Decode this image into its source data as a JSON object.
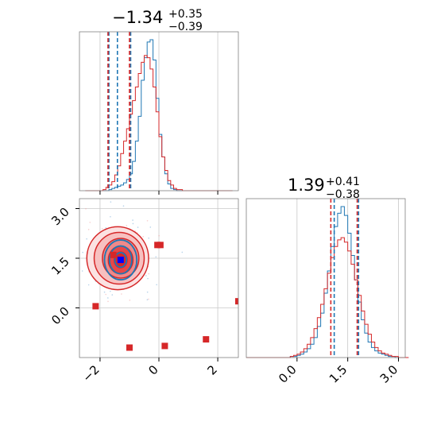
{
  "chart_data": [
    {
      "type": "histogram",
      "panel": "top-left",
      "title_value": "−1.34",
      "title_plus": "+0.35",
      "title_minus": "−0.39",
      "xlim": [
        -2.7,
        2.7
      ],
      "x_ticks": [
        -2,
        0,
        2
      ],
      "series": [
        {
          "color": "#1f77b4",
          "bin_start": -2.5,
          "bin_width": 0.1,
          "counts": [
            0,
            0,
            0,
            0,
            0,
            0,
            0,
            0,
            1,
            2,
            3,
            4,
            5,
            7,
            10,
            15,
            26,
            44,
            66,
            98,
            118,
            132,
            134,
            116,
            82,
            50,
            30,
            15,
            6,
            2,
            1,
            0,
            0,
            0,
            0,
            0,
            0,
            0,
            0,
            0,
            0,
            0,
            0,
            0,
            0,
            0,
            0,
            0,
            0,
            0
          ],
          "quantile_lines": [
            -1.7,
            -1.41,
            -0.96
          ]
        },
        {
          "color": "#d62728",
          "bin_start": -2.5,
          "bin_width": 0.1,
          "counts": [
            0,
            0,
            0,
            0,
            0,
            0,
            1,
            3,
            5,
            8,
            14,
            22,
            33,
            44,
            55,
            68,
            80,
            92,
            104,
            114,
            120,
            118,
            108,
            92,
            70,
            48,
            30,
            18,
            9,
            5,
            2,
            1,
            1,
            0,
            0,
            0,
            0,
            0,
            0,
            0,
            0,
            0,
            0,
            0,
            0,
            0,
            0,
            0,
            0,
            0
          ],
          "quantile_lines": [
            -1.73,
            -1.0
          ]
        }
      ]
    },
    {
      "type": "contour-scatter",
      "panel": "bottom-left",
      "xlim": [
        -2.7,
        2.7
      ],
      "ylim": [
        -1.5,
        3.3
      ],
      "x_ticks": [
        -2,
        0,
        2
      ],
      "y_ticks": [
        0.0,
        1.5,
        3.0
      ],
      "y_tick_labels": [
        "0.0",
        "1.5",
        "3.0"
      ],
      "red_contours": [
        {
          "cx": -1.4,
          "cy": 1.5,
          "rx": 1.05,
          "ry": 0.95,
          "fill": "#fbe2e2"
        },
        {
          "cx": -1.35,
          "cy": 1.5,
          "rx": 0.85,
          "ry": 0.78,
          "fill": "#f7c0c0"
        },
        {
          "cx": -1.3,
          "cy": 1.5,
          "rx": 0.62,
          "ry": 0.6,
          "fill": "#ef8a8a"
        },
        {
          "cx": -1.3,
          "cy": 1.45,
          "rx": 0.42,
          "ry": 0.42,
          "fill": "#e54848"
        },
        {
          "cx": -1.3,
          "cy": 1.45,
          "rx": 0.22,
          "ry": 0.24,
          "fill": "#d62728"
        }
      ],
      "blue_contours": [
        {
          "cx": -1.3,
          "cy": 1.45,
          "rx": 0.55,
          "ry": 0.6
        },
        {
          "cx": -1.3,
          "cy": 1.45,
          "rx": 0.38,
          "ry": 0.42
        },
        {
          "cx": -1.3,
          "cy": 1.45,
          "rx": 0.2,
          "ry": 0.22
        }
      ],
      "red_points": [
        [
          -1.55,
          1.6
        ],
        [
          -0.05,
          1.9
        ],
        [
          0.05,
          1.9
        ],
        [
          -2.15,
          0.05
        ],
        [
          -1.0,
          -1.2
        ],
        [
          0.2,
          -1.15
        ],
        [
          1.6,
          -0.95
        ],
        [
          2.7,
          0.2
        ]
      ],
      "blue_point": [
        -1.3,
        1.45
      ],
      "colors": {
        "red": "#d62728",
        "blue": "#1f77b4",
        "blue_marker": "#0000ff"
      }
    },
    {
      "type": "histogram",
      "panel": "bottom-right",
      "title_value": "1.39",
      "title_plus": "+0.41",
      "title_minus": "−0.38",
      "xlim": [
        -1.5,
        3.2
      ],
      "x_ticks": [
        0.0,
        1.5,
        3.0
      ],
      "x_tick_labels": [
        "0.0",
        "1.5",
        "3.0"
      ],
      "series": [
        {
          "color": "#1f77b4",
          "bin_start": -1.5,
          "bin_width": 0.1,
          "counts": [
            0,
            0,
            0,
            0,
            0,
            0,
            0,
            0,
            0,
            0,
            0,
            0,
            0,
            1,
            1,
            2,
            3,
            5,
            8,
            12,
            18,
            28,
            40,
            58,
            78,
            100,
            118,
            130,
            136,
            128,
            112,
            92,
            70,
            50,
            34,
            22,
            14,
            9,
            6,
            4,
            3,
            2,
            1,
            1,
            0,
            0,
            0,
            0
          ],
          "quantile_lines": [
            1.1,
            1.82
          ]
        },
        {
          "color": "#d62728",
          "bin_start": -1.5,
          "bin_width": 0.1,
          "counts": [
            0,
            0,
            0,
            0,
            0,
            0,
            0,
            0,
            0,
            0,
            0,
            0,
            0,
            1,
            2,
            3,
            5,
            8,
            12,
            18,
            26,
            36,
            48,
            62,
            76,
            90,
            100,
            106,
            108,
            104,
            96,
            84,
            70,
            56,
            42,
            30,
            21,
            14,
            9,
            6,
            4,
            3,
            2,
            1,
            1,
            0,
            0,
            0
          ],
          "quantile_lines": [
            1.0,
            1.78
          ]
        }
      ]
    }
  ]
}
